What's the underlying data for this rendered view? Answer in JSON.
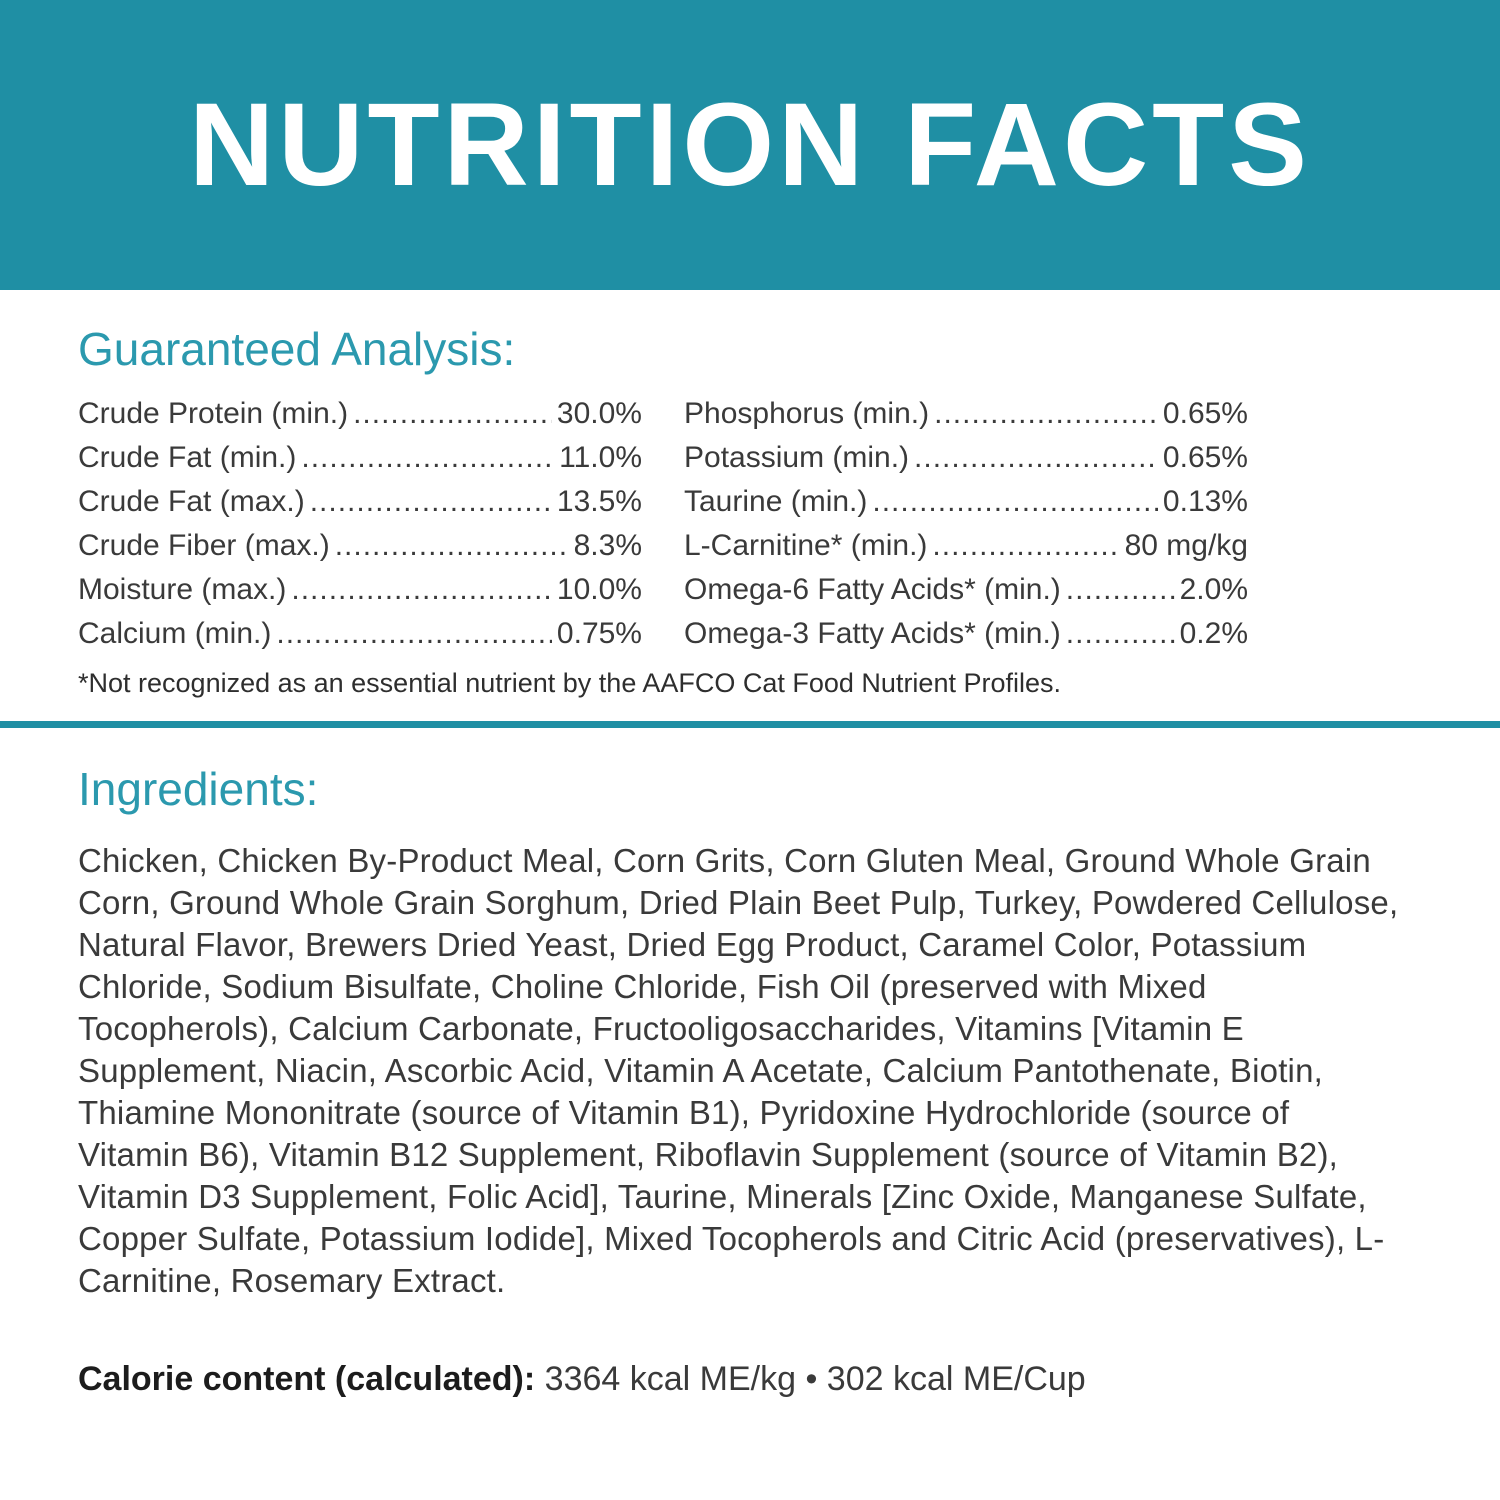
{
  "colors": {
    "teal": "#1f8fa4",
    "heading_teal": "#2b99ae",
    "text": "#3a3a3a"
  },
  "banner": {
    "title": "NUTRITION FACTS"
  },
  "guaranteed_analysis": {
    "heading": "Guaranteed Analysis:",
    "left": [
      {
        "label": "Crude Protein (min.)",
        "value": "30.0%"
      },
      {
        "label": "Crude Fat (min.)",
        "value": "11.0%"
      },
      {
        "label": "Crude Fat (max.)",
        "value": "13.5%"
      },
      {
        "label": "Crude Fiber (max.)",
        "value": "8.3%"
      },
      {
        "label": "Moisture (max.)",
        "value": "10.0%"
      },
      {
        "label": "Calcium (min.)",
        "value": "0.75%"
      }
    ],
    "right": [
      {
        "label": "Phosphorus (min.)",
        "value": "0.65%"
      },
      {
        "label": "Potassium (min.)",
        "value": "0.65%"
      },
      {
        "label": "Taurine (min.)",
        "value": "0.13%"
      },
      {
        "label": "L-Carnitine* (min.)",
        "value": "80 mg/kg"
      },
      {
        "label": "Omega-6 Fatty Acids* (min.)",
        "value": "2.0%"
      },
      {
        "label": "Omega-3 Fatty Acids* (min.)",
        "value": "0.2%"
      }
    ],
    "footnote": "*Not recognized as an essential nutrient by the AAFCO Cat Food Nutrient Profiles."
  },
  "ingredients": {
    "heading": "Ingredients:",
    "text": "Chicken, Chicken By-Product Meal, Corn Grits, Corn Gluten Meal, Ground Whole Grain Corn, Ground Whole Grain Sorghum, Dried Plain Beet Pulp, Turkey, Powdered Cellulose, Natural Flavor, Brewers Dried Yeast, Dried Egg Product, Caramel Color, Potassium Chloride, Sodium Bisulfate, Choline Chloride, Fish Oil (preserved with Mixed Tocopherols), Calcium Carbonate, Fructooligosaccharides, Vitamins [Vitamin E Supplement, Niacin, Ascorbic Acid, Vitamin A Acetate, Calcium Pantothenate, Biotin, Thiamine Mononitrate (source of Vitamin B1), Pyridoxine Hydrochloride (source of Vitamin B6), Vitamin B12 Supplement, Riboflavin Supplement (source of Vitamin B2), Vitamin D3 Supplement, Folic Acid], Taurine, Minerals [Zinc Oxide, Manganese Sulfate, Copper Sulfate, Potassium Iodide], Mixed Tocopherols and Citric Acid (preservatives), L-Carnitine, Rosemary Extract."
  },
  "calorie": {
    "label": "Calorie content (calculated):",
    "value": "3364 kcal ME/kg • 302 kcal ME/Cup"
  }
}
